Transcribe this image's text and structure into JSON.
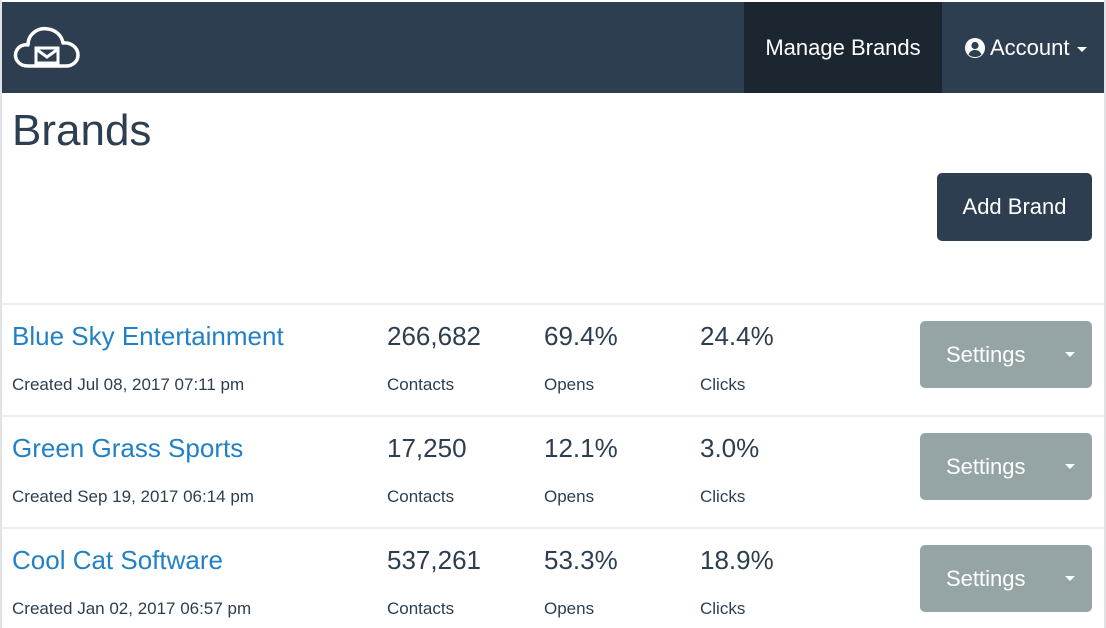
{
  "navbar": {
    "manage_brands": "Manage Brands",
    "account": "Account"
  },
  "header": {
    "title": "Brands",
    "add_brand": "Add Brand"
  },
  "brands": [
    {
      "name": "Blue Sky Entertainment",
      "created": "Created Jul 08, 2017 07:11 pm",
      "contacts": "266,682",
      "contacts_label": "Contacts",
      "opens": "69.4%",
      "opens_label": "Opens",
      "clicks": "24.4%",
      "clicks_label": "Clicks",
      "settings": "Settings"
    },
    {
      "name": "Green Grass Sports",
      "created": "Created Sep 19, 2017 06:14 pm",
      "contacts": "17,250",
      "contacts_label": "Contacts",
      "opens": "12.1%",
      "opens_label": "Opens",
      "clicks": "3.0%",
      "clicks_label": "Clicks",
      "settings": "Settings"
    },
    {
      "name": "Cool Cat Software",
      "created": "Created Jan 02, 2017 06:57 pm",
      "contacts": "537,261",
      "contacts_label": "Contacts",
      "opens": "53.3%",
      "opens_label": "Opens",
      "clicks": "18.9%",
      "clicks_label": "Clicks",
      "settings": "Settings"
    }
  ],
  "colors": {
    "navbar": "#2c3e50",
    "navbar_active": "#1b2631",
    "link": "#2280c6",
    "settings_button": "#95a5a6"
  },
  "icons": {
    "logo": "cloud-mail-icon",
    "account": "user-circle-icon",
    "dropdown": "caret-down-icon"
  }
}
